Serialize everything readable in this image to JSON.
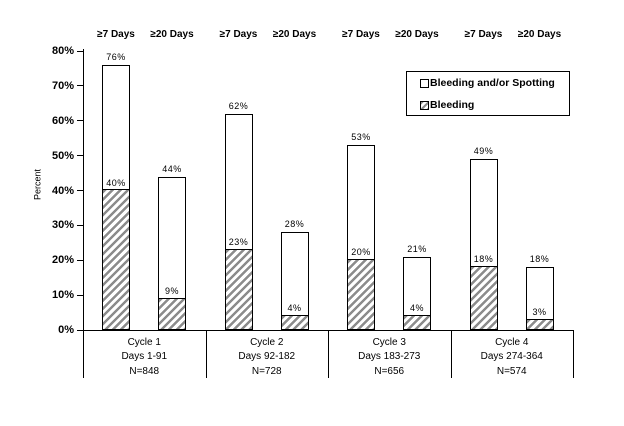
{
  "chart_data": {
    "type": "bar",
    "subtype": "grouped-stacked",
    "title": "",
    "ylabel": "Percent",
    "ylim": [
      0,
      80
    ],
    "ytick_step": 10,
    "yticks": [
      "0%",
      "10%",
      "20%",
      "30%",
      "40%",
      "50%",
      "60%",
      "70%",
      "80%"
    ],
    "value_suffix": "%",
    "grid": false,
    "legend": [
      "Bleeding and/or Spotting",
      "Bleeding"
    ],
    "legend_position": "upper-right",
    "series_note": "Full bar height = Bleeding and/or Spotting %; hatched lower segment = Bleeding %",
    "groups": [
      {
        "name": "Cycle 1",
        "days": "Days 1-91",
        "n": "N=848",
        "bars": [
          {
            "label": "≥7 Days",
            "bleeding_or_spotting": 76,
            "bleeding": 40
          },
          {
            "label": "≥20 Days",
            "bleeding_or_spotting": 44,
            "bleeding": 9
          }
        ]
      },
      {
        "name": "Cycle 2",
        "days": "Days 92-182",
        "n": "N=728",
        "bars": [
          {
            "label": "≥7 Days",
            "bleeding_or_spotting": 62,
            "bleeding": 23
          },
          {
            "label": "≥20 Days",
            "bleeding_or_spotting": 28,
            "bleeding": 4
          }
        ]
      },
      {
        "name": "Cycle 3",
        "days": "Days 183-273",
        "n": "N=656",
        "bars": [
          {
            "label": "≥7 Days",
            "bleeding_or_spotting": 53,
            "bleeding": 20
          },
          {
            "label": "≥20 Days",
            "bleeding_or_spotting": 21,
            "bleeding": 4
          }
        ]
      },
      {
        "name": "Cycle 4",
        "days": "Days 274-364",
        "n": "N=574",
        "bars": [
          {
            "label": "≥7 Days",
            "bleeding_or_spotting": 49,
            "bleeding": 18
          },
          {
            "label": "≥20 Days",
            "bleeding_or_spotting": 18,
            "bleeding": 3
          }
        ]
      }
    ]
  },
  "colors": {
    "background": "#ffffff",
    "bar_fill": "#ffffff",
    "bar_border": "#000000",
    "hatch_stripe": "#8c8c8c",
    "text": "#000000"
  }
}
